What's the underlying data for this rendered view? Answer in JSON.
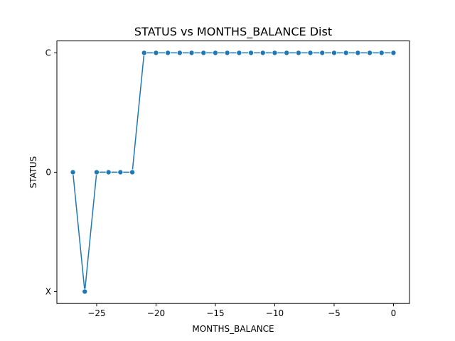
{
  "chart_data": {
    "type": "line",
    "title": "STATUS vs MONTHS_BALANCE Dist",
    "xlabel": "MONTHS_BALANCE",
    "ylabel": "STATUS",
    "xlim": [
      -28.35,
      1.35
    ],
    "x_ticks": [
      -25,
      -20,
      -15,
      -10,
      -5,
      0
    ],
    "x_tick_labels": [
      "−25",
      "−20",
      "−15",
      "−10",
      "−5",
      "0"
    ],
    "y_categories": [
      "X",
      "0",
      "C"
    ],
    "grid": false,
    "legend": "none",
    "series": [
      {
        "x": [
          -27,
          -26,
          -25,
          -24,
          -23,
          -22,
          -21,
          -20,
          -19,
          -18,
          -17,
          -16,
          -15,
          -14,
          -13,
          -12,
          -11,
          -10,
          -9,
          -8,
          -7,
          -6,
          -5,
          -4,
          -3,
          -2,
          -1,
          0
        ],
        "y": [
          "0",
          "X",
          "0",
          "0",
          "0",
          "0",
          "C",
          "C",
          "C",
          "C",
          "C",
          "C",
          "C",
          "C",
          "C",
          "C",
          "C",
          "C",
          "C",
          "C",
          "C",
          "C",
          "C",
          "C",
          "C",
          "C",
          "C",
          "C"
        ],
        "color": "#1f77b4",
        "marker": "circle"
      }
    ]
  }
}
